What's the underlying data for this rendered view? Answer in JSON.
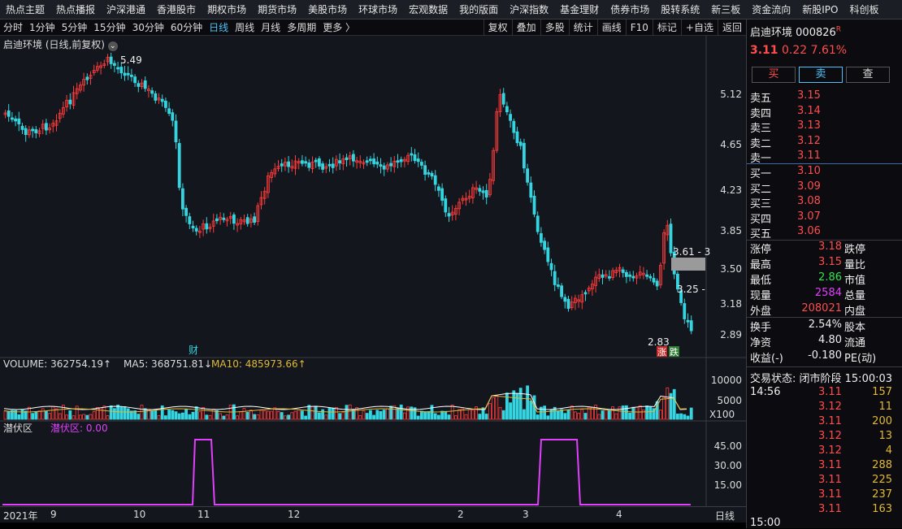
{
  "topnav": [
    "热点主题",
    "热点播报",
    "沪深港通",
    "香港股市",
    "期权市场",
    "期货市场",
    "美股市场",
    "环球市场",
    "宏观数据",
    "我的版面",
    "沪深指数",
    "基金理财",
    "债券市场",
    "股转系统",
    "新三板",
    "资金流向",
    "新股IPO",
    "科创板"
  ],
  "periods": [
    "分时",
    "1分钟",
    "5分钟",
    "15分钟",
    "30分钟",
    "60分钟",
    "日线",
    "周线",
    "月线",
    "多周期",
    "更多 〉"
  ],
  "active_period": "日线",
  "tools": [
    "复权",
    "叠加",
    "多股",
    "统计",
    "画线",
    "F10",
    "标记",
    "+自选",
    "返回"
  ],
  "chart_title": "启迪环境 (日线,前复权)",
  "price_ticks": [
    "5.12",
    "4.65",
    "4.23",
    "3.85",
    "3.50",
    "3.18",
    "2.89"
  ],
  "marks": {
    "high": "5.49",
    "low": "2.83",
    "m1": "3.61 - 3",
    "m2": "3.25 -",
    "cai": "财",
    "zhang": "涨",
    "die": "跌"
  },
  "volume": {
    "label": "VOLUME: 362754.19↑",
    "ma5": "MA5: 368751.81↓",
    "ma10": "MA10: 485973.66↑",
    "ticks": [
      "10000",
      "5000"
    ],
    "unit": "X100"
  },
  "indicator": {
    "name": "潜伏区",
    "value_label": "潜伏区: 0.00",
    "ticks": [
      "45.00",
      "30.00",
      "15.00"
    ]
  },
  "xaxis": {
    "labels": [
      "2021年",
      "9",
      "10",
      "11",
      "12",
      "2",
      "3",
      "4"
    ],
    "right": "日线"
  },
  "stock": {
    "name": "启迪环境",
    "code": "000826",
    "flag": "R",
    "price": "3.11",
    "change": "0.22",
    "pct": "7.61%"
  },
  "trade_buttons": [
    "买",
    "卖",
    "查"
  ],
  "asks": [
    {
      "label": "卖五",
      "price": "3.15"
    },
    {
      "label": "卖四",
      "price": "3.14"
    },
    {
      "label": "卖三",
      "price": "3.13"
    },
    {
      "label": "卖二",
      "price": "3.12"
    },
    {
      "label": "卖一",
      "price": "3.11"
    }
  ],
  "bids": [
    {
      "label": "买一",
      "price": "3.10"
    },
    {
      "label": "买二",
      "price": "3.09"
    },
    {
      "label": "买三",
      "price": "3.08"
    },
    {
      "label": "买四",
      "price": "3.07"
    },
    {
      "label": "买五",
      "price": "3.06"
    }
  ],
  "stats": [
    {
      "label": "涨停",
      "value": "3.18",
      "label2": "跌停",
      "color": "red"
    },
    {
      "label": "最高",
      "value": "3.15",
      "label2": "量比",
      "color": "red"
    },
    {
      "label": "最低",
      "value": "2.86",
      "label2": "市值",
      "color": "green"
    },
    {
      "label": "现量",
      "value": "2584",
      "label2": "总量",
      "color": "mag"
    },
    {
      "label": "外盘",
      "value": "208021",
      "label2": "内盘",
      "color": "red"
    }
  ],
  "stats2": [
    {
      "label": "换手",
      "value": "2.54%",
      "label2": "股本"
    },
    {
      "label": "净资",
      "value": "4.80",
      "label2": "流通"
    },
    {
      "label": "收益(-)",
      "value": "-0.180",
      "label2": "PE(动)"
    }
  ],
  "trade_status": "交易状态: 闭市阶段 15:00:03",
  "ticks_time": "14:56",
  "ticks": [
    {
      "p": "3.11",
      "v": "157"
    },
    {
      "p": "3.12",
      "v": "11"
    },
    {
      "p": "3.11",
      "v": "200"
    },
    {
      "p": "3.12",
      "v": "13"
    },
    {
      "p": "3.12",
      "v": "4"
    },
    {
      "p": "3.11",
      "v": "288"
    },
    {
      "p": "3.11",
      "v": "225"
    },
    {
      "p": "3.11",
      "v": "237"
    },
    {
      "p": "3.11",
      "v": "163"
    }
  ],
  "bottom_time": "15:00"
}
